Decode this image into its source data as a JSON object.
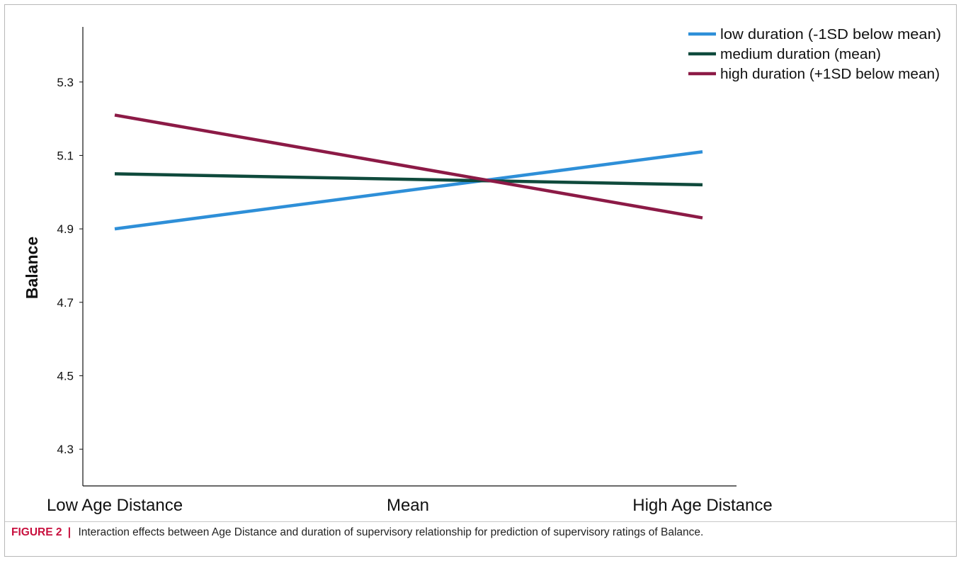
{
  "chart_data": {
    "type": "line",
    "title": "",
    "xlabel": "",
    "ylabel": "Balance",
    "categories": [
      "Low Age Distance",
      "Mean",
      "High Age Distance"
    ],
    "x_positions": [
      0,
      1,
      2
    ],
    "ylim": [
      4.2,
      5.45
    ],
    "yticks": [
      "4.3",
      "4.5",
      "4.7",
      "4.9",
      "5.1",
      "5.3"
    ],
    "grid": false,
    "legend_position": "top-right",
    "series": [
      {
        "name": "low duration (-1SD below mean)",
        "color": "#2e8fd8",
        "x": [
          0,
          2
        ],
        "values": [
          4.9,
          5.11
        ]
      },
      {
        "name": "medium duration (mean)",
        "color": "#0f4a3c",
        "x": [
          0,
          2
        ],
        "values": [
          5.05,
          5.02
        ]
      },
      {
        "name": "high duration (+1SD below mean)",
        "color": "#8c1a46",
        "x": [
          0,
          2
        ],
        "values": [
          5.21,
          4.93
        ]
      }
    ]
  },
  "caption": {
    "label": "FIGURE 2",
    "separator": "|",
    "text": "Interaction effects between Age Distance and duration of supervisory relationship for prediction of supervisory ratings of Balance."
  }
}
